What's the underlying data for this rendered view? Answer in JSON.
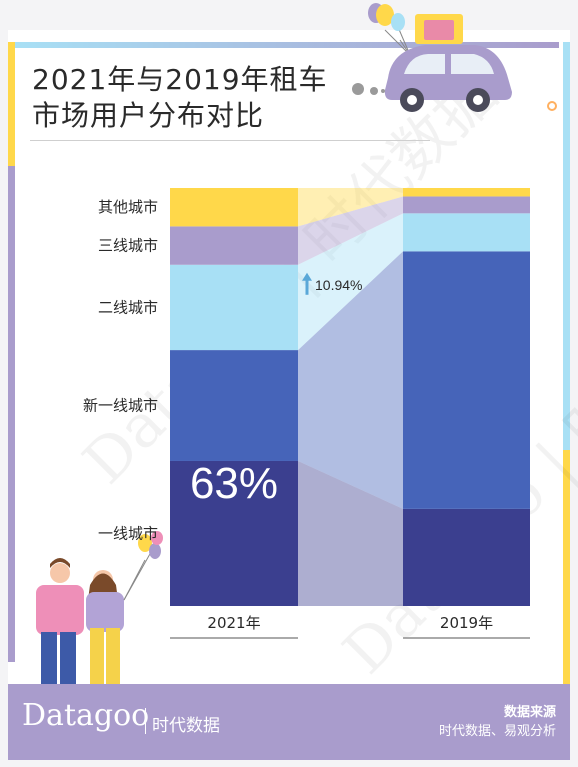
{
  "title": {
    "line1": "2021年与2019年租车",
    "line2": "市场用户分布对比"
  },
  "colors": {
    "tier1": "#3b3f8f",
    "new_tier1": "#4664b9",
    "tier2": "#a8e0f5",
    "tier3": "#a99ccc",
    "other": "#ffd84a",
    "accent_blue": "#a8e0f5",
    "accent_yellow": "#ffd84a",
    "accent_purple": "#a99ccc"
  },
  "chart_data": {
    "type": "bar",
    "stacked": true,
    "normalized": true,
    "categories": [
      "2021年",
      "2019年"
    ],
    "series": [
      {
        "name": "一线城市",
        "color_key": "tier1",
        "values": [
          34,
          23
        ]
      },
      {
        "name": "新一线城市",
        "color_key": "new_tier1",
        "values": [
          26,
          61
        ]
      },
      {
        "name": "二线城市",
        "color_key": "tier2",
        "values": [
          20,
          9
        ]
      },
      {
        "name": "三线城市",
        "color_key": "tier3",
        "values": [
          9,
          4
        ]
      },
      {
        "name": "其他城市",
        "color_key": "other",
        "values": [
          9,
          2
        ]
      }
    ],
    "ylim": [
      0,
      100
    ],
    "annotations": [
      {
        "text": "63%",
        "bar": "2021年"
      },
      {
        "text": "10.94%",
        "arrow": "up"
      }
    ],
    "legend": "left"
  },
  "footer": {
    "logo": "Datagoo",
    "logo_cn": "时代数据",
    "source_title": "数据来源",
    "source_text": "时代数据、易观分析"
  },
  "watermark": {
    "text": "Datagoo | 时代数据"
  }
}
